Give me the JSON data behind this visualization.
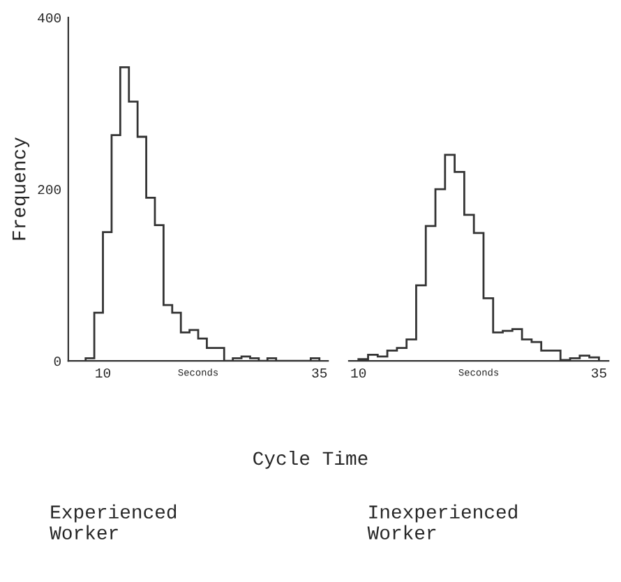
{
  "chart_data": [
    {
      "type": "histogram",
      "xlabel": "Seconds",
      "ylabel": "Frequency",
      "annotations": [
        "Cycle Time",
        "Experienced\nWorker"
      ],
      "color": "#333333",
      "bins": [
        8,
        9,
        10,
        11,
        12,
        13,
        14,
        15,
        16,
        17,
        18,
        19,
        20,
        21,
        22,
        23,
        24,
        25,
        26,
        27,
        28,
        29,
        30,
        31,
        32,
        33,
        34,
        35
      ],
      "values": [
        3,
        56,
        150,
        263,
        342,
        302,
        261,
        190,
        158,
        65,
        56,
        33,
        36,
        26,
        15,
        15,
        0,
        3,
        5,
        3,
        0,
        3,
        0,
        0,
        0,
        0,
        3
      ],
      "xlim": [
        6,
        36
      ],
      "xticks": [
        10,
        35
      ],
      "ylim": [
        0,
        400
      ],
      "yticks": [
        0,
        200,
        400
      ],
      "grid": false
    },
    {
      "type": "histogram",
      "xlabel": "Seconds",
      "annotations": [
        "Inexperienced\nWorker"
      ],
      "color": "#333333",
      "bins": [
        10,
        11,
        12,
        13,
        14,
        15,
        16,
        17,
        18,
        19,
        20,
        21,
        22,
        23,
        24,
        25,
        26,
        27,
        28,
        29,
        30,
        31,
        32,
        33,
        34,
        35
      ],
      "values": [
        2,
        7,
        5,
        12,
        15,
        25,
        88,
        157,
        200,
        240,
        220,
        170,
        149,
        73,
        33,
        35,
        37,
        25,
        22,
        12,
        12,
        1,
        3,
        6,
        4
      ],
      "xlim": [
        9,
        36
      ],
      "xticks": [
        10,
        35
      ],
      "ylim": [
        0,
        400
      ],
      "yticks": [
        0,
        200,
        400
      ],
      "tick_labels": "x",
      "grid": false
    }
  ]
}
